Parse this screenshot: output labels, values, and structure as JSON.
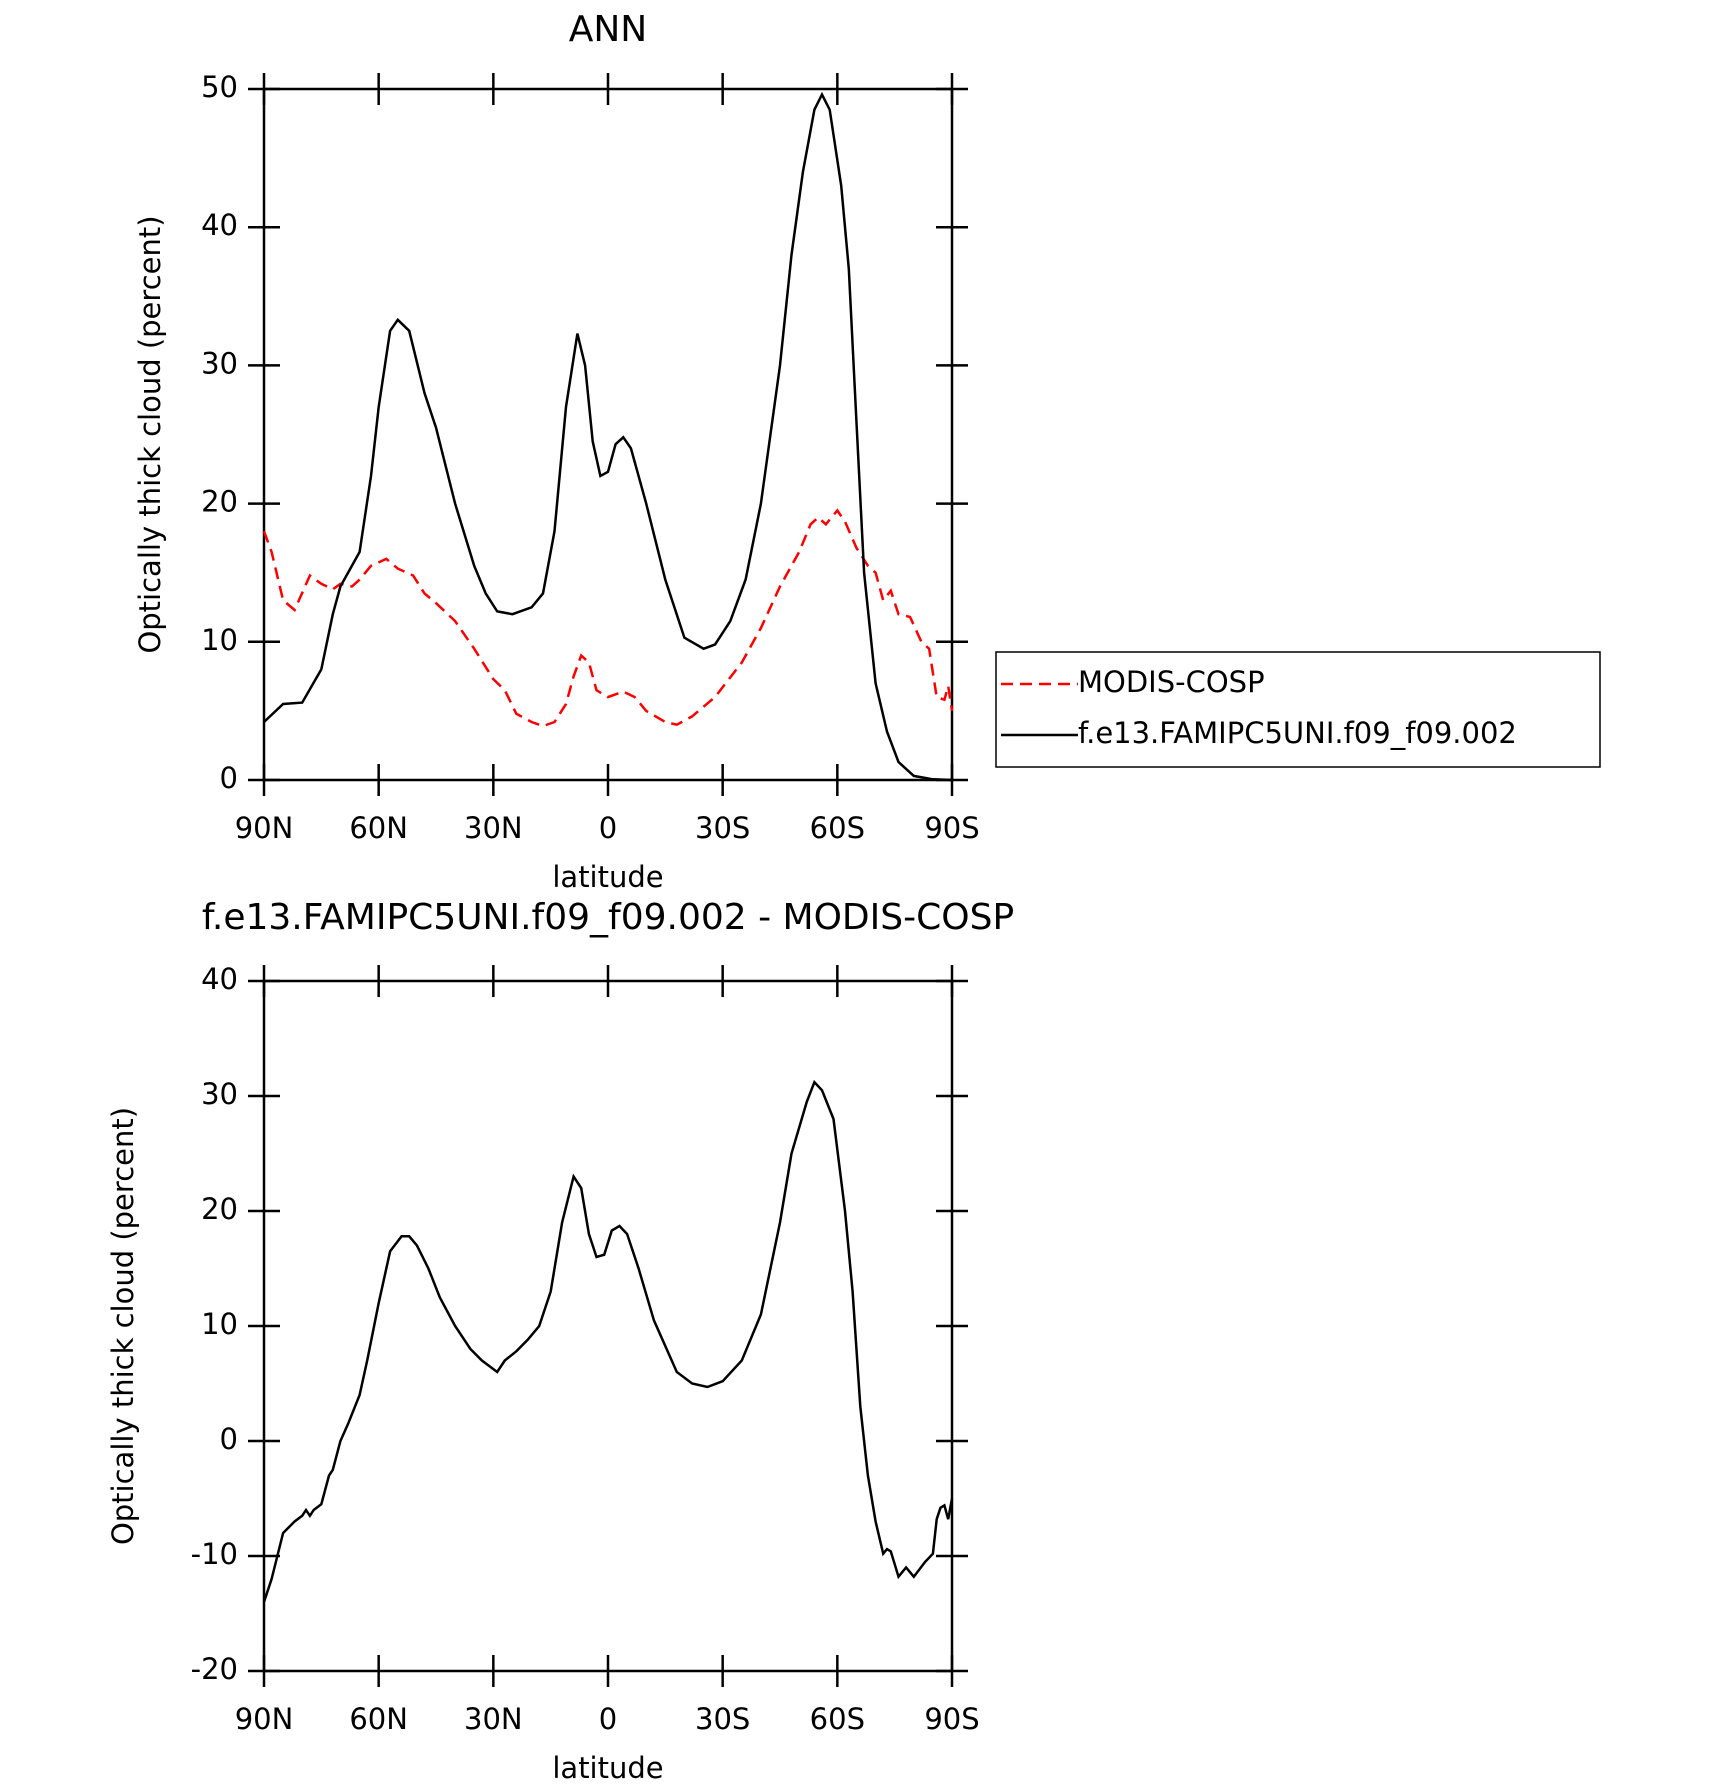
{
  "chart_data": [
    {
      "type": "line",
      "title": "ANN",
      "xlabel": "latitude",
      "ylabel": "Optically thick cloud (percent)",
      "xlim": [
        90,
        -90
      ],
      "xticks": [
        {
          "value": 90,
          "label": "90N"
        },
        {
          "value": 60,
          "label": "60N"
        },
        {
          "value": 30,
          "label": "30N"
        },
        0,
        {
          "value": -30,
          "label": "30S"
        },
        {
          "value": -60,
          "label": "60S"
        },
        {
          "value": -90,
          "label": "90S"
        }
      ],
      "ylim": [
        0,
        50
      ],
      "yticks": [
        0,
        10,
        20,
        30,
        40,
        50
      ],
      "legend": "outside-right",
      "series": [
        {
          "name": "MODIS-COSP",
          "color": "#ff0000",
          "linestyle": "dashed",
          "x": [
            90,
            88,
            85,
            82,
            78,
            75,
            72,
            70,
            67,
            65,
            62,
            58,
            55,
            51,
            48,
            45,
            40,
            35,
            30,
            27,
            24,
            20,
            17,
            14,
            11,
            9,
            7,
            5,
            3,
            0,
            -4,
            -7,
            -10,
            -15,
            -18,
            -22,
            -28,
            -35,
            -40,
            -45,
            -50,
            -53,
            -55,
            -57,
            -60,
            -62,
            -65,
            -68,
            -70,
            -72,
            -74,
            -76,
            -79,
            -82,
            -84,
            -86,
            -88,
            -89,
            -90
          ],
          "values": [
            18,
            16.5,
            13,
            12.3,
            14.8,
            14.2,
            13.8,
            14.2,
            14,
            14.5,
            15.5,
            16,
            15.3,
            14.8,
            13.5,
            12.8,
            11.5,
            9.5,
            7.3,
            6.5,
            4.8,
            4.2,
            3.9,
            4.2,
            5.5,
            7.5,
            9,
            8.5,
            6.5,
            6,
            6.4,
            6,
            5,
            4.2,
            4,
            4.6,
            6,
            8.5,
            11,
            14,
            16.5,
            18.5,
            19,
            18.5,
            19.5,
            18.7,
            16.8,
            15.5,
            15,
            13,
            13.7,
            12,
            11.8,
            10,
            9.5,
            6,
            5.8,
            6.8,
            5
          ]
        },
        {
          "name": "f.e13.FAMIPC5UNI.f09_f09.002",
          "color": "#000000",
          "linestyle": "solid",
          "x": [
            90,
            85,
            80,
            75,
            72,
            70,
            65,
            62,
            60,
            57,
            55,
            52,
            48,
            45,
            40,
            35,
            32,
            29,
            25,
            20,
            17,
            14,
            11,
            8,
            6,
            4,
            2,
            0,
            -2,
            -4,
            -6,
            -10,
            -15,
            -20,
            -25,
            -28,
            -32,
            -36,
            -40,
            -45,
            -48,
            -51,
            -54,
            -56,
            -58,
            -61,
            -63,
            -65,
            -67,
            -70,
            -73,
            -76,
            -80,
            -85,
            -90
          ],
          "values": [
            4.2,
            5.5,
            5.6,
            8,
            12,
            14,
            16.5,
            22,
            27,
            32.5,
            33.3,
            32.5,
            28,
            25.5,
            20,
            15.5,
            13.5,
            12.2,
            12,
            12.5,
            13.5,
            18,
            27,
            32.3,
            30,
            24.5,
            22,
            22.3,
            24.3,
            24.8,
            24,
            20,
            14.5,
            10.3,
            9.5,
            9.8,
            11.5,
            14.5,
            20,
            30,
            38,
            44,
            48.5,
            49.6,
            48.5,
            43,
            37,
            26,
            15,
            7,
            3.5,
            1.3,
            0.3,
            0.05,
            0
          ]
        }
      ]
    },
    {
      "type": "line",
      "title": "f.e13.FAMIPC5UNI.f09_f09.002 - MODIS-COSP",
      "xlabel": "latitude",
      "ylabel": "Optically thick cloud (percent)",
      "xlim": [
        90,
        -90
      ],
      "xticks": [
        {
          "value": 90,
          "label": "90N"
        },
        {
          "value": 60,
          "label": "60N"
        },
        {
          "value": 30,
          "label": "30N"
        },
        0,
        {
          "value": -30,
          "label": "30S"
        },
        {
          "value": -60,
          "label": "60S"
        },
        {
          "value": -90,
          "label": "90S"
        }
      ],
      "ylim": [
        -20,
        40
      ],
      "yticks": [
        -20,
        -10,
        0,
        10,
        20,
        30,
        40
      ],
      "series": [
        {
          "color": "#000000",
          "linestyle": "solid",
          "x": [
            90,
            88,
            85,
            82,
            80,
            79,
            78,
            77,
            75,
            73,
            72,
            70,
            68,
            65,
            63,
            60,
            57,
            54,
            52,
            50,
            47,
            44,
            40,
            36,
            33,
            29,
            27,
            24,
            21,
            18,
            15,
            12,
            9,
            7,
            5,
            3,
            1,
            -1,
            -3,
            -5,
            -8,
            -12,
            -18,
            -22,
            -26,
            -30,
            -35,
            -40,
            -45,
            -48,
            -52,
            -54,
            -56,
            -59,
            -62,
            -64,
            -66,
            -68,
            -70,
            -72,
            -73,
            -74,
            -76,
            -78,
            -80,
            -83,
            -85,
            -86,
            -87,
            -88,
            -89,
            -90
          ],
          "values": [
            -14,
            -12,
            -8,
            -7,
            -6.5,
            -6,
            -6.5,
            -6,
            -5.5,
            -3,
            -2.5,
            0,
            1.5,
            4,
            7,
            12,
            16.5,
            17.8,
            17.8,
            17,
            15,
            12.5,
            10,
            8,
            7,
            6,
            7,
            7.8,
            8.8,
            10,
            13,
            19,
            23,
            22,
            18,
            16,
            16.2,
            18.3,
            18.7,
            18,
            15,
            10.5,
            6,
            5,
            4.7,
            5.2,
            7,
            11,
            19,
            25,
            29.5,
            31.2,
            30.5,
            28,
            20,
            13,
            3,
            -3,
            -7,
            -9.8,
            -9.4,
            -9.6,
            -11.8,
            -11,
            -11.8,
            -10.5,
            -9.8,
            -6.8,
            -5.8,
            -5.6,
            -6.8,
            -5
          ]
        }
      ]
    }
  ]
}
